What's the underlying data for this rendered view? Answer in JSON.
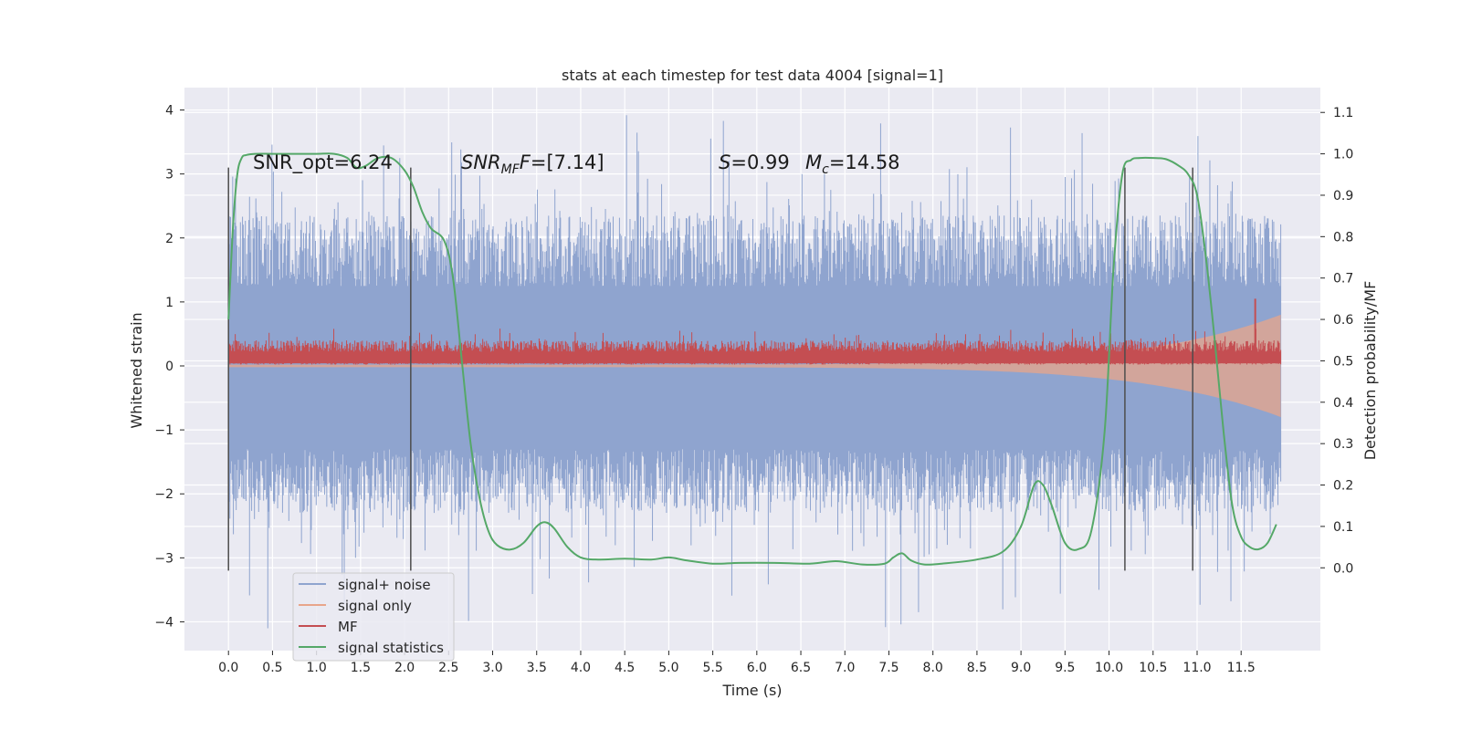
{
  "chart_data": {
    "type": "line",
    "title": "stats at each timestep for test data 4004 [signal=1]",
    "xlabel": "Time (s)",
    "ylabel": "Whitened strain",
    "y2label": "Detection probability/MF",
    "xlim": [
      -0.5,
      12.4
    ],
    "ylim": [
      -4.45,
      4.35
    ],
    "y2lim": [
      -0.2,
      1.16
    ],
    "x_ticks": [
      0.0,
      0.5,
      1.0,
      1.5,
      2.0,
      2.5,
      3.0,
      3.5,
      4.0,
      4.5,
      5.0,
      5.5,
      6.0,
      6.5,
      7.0,
      7.5,
      8.0,
      8.5,
      9.0,
      9.5,
      10.0,
      10.5,
      11.0,
      11.5
    ],
    "x_tick_labels": [
      "0.0",
      "0.5",
      "1.0",
      "1.5",
      "2.0",
      "2.5",
      "3.0",
      "3.5",
      "4.0",
      "4.5",
      "5.0",
      "5.5",
      "6.0",
      "6.5",
      "7.0",
      "7.5",
      "8.0",
      "8.5",
      "9.0",
      "9.5",
      "10.0",
      "10.5",
      "11.0",
      "11.5"
    ],
    "y_ticks": [
      -4,
      -3,
      -2,
      -1,
      0,
      1,
      2,
      3,
      4
    ],
    "y_tick_labels": [
      "−4",
      "−3",
      "−2",
      "−1",
      "0",
      "1",
      "2",
      "3",
      "4"
    ],
    "y2_ticks": [
      0.0,
      0.1,
      0.2,
      0.3,
      0.4,
      0.5,
      0.6,
      0.7,
      0.8,
      0.9,
      1.0,
      1.1
    ],
    "y2_tick_labels": [
      "0.0",
      "0.1",
      "0.2",
      "0.3",
      "0.4",
      "0.5",
      "0.6",
      "0.7",
      "0.8",
      "0.9",
      "1.0",
      "1.1"
    ],
    "grid": true,
    "legend_position": "bottom-left",
    "colors": {
      "background": "#eaeaf2",
      "grid": "#ffffff",
      "noise": "#8fa4cf",
      "signal_only": "#e8a58a",
      "mf": "#c44e52",
      "stats": "#55a868",
      "vlines": "#4d4d4d"
    },
    "series": [
      {
        "name": "signal+ noise",
        "kind": "band",
        "x_range": [
          0.0,
          11.95
        ],
        "envelope_low": -2.2,
        "envelope_high": 2.3,
        "peak_low": -4.1,
        "peak_high": 3.98
      },
      {
        "name": "signal only",
        "kind": "band",
        "x_range": [
          0.0,
          11.95
        ],
        "amplitude_start": 0.02,
        "amplitude_end": 0.8
      },
      {
        "name": "MF",
        "kind": "band",
        "x_range": [
          0.0,
          11.95
        ],
        "low": 0.02,
        "high": 0.35,
        "spike": {
          "x": 11.66,
          "value": 1.05
        }
      },
      {
        "name": "signal statistics",
        "kind": "line",
        "axis": "right",
        "x": [
          0.0,
          0.05,
          0.1,
          0.15,
          0.2,
          0.3,
          0.5,
          0.8,
          1.0,
          1.2,
          1.35,
          1.45,
          1.55,
          1.7,
          1.85,
          2.0,
          2.1,
          2.2,
          2.3,
          2.45,
          2.55,
          2.65,
          2.75,
          2.85,
          2.95,
          3.05,
          3.2,
          3.35,
          3.5,
          3.6,
          3.7,
          3.85,
          4.0,
          4.2,
          4.5,
          4.8,
          5.0,
          5.2,
          5.5,
          5.8,
          6.2,
          6.6,
          6.9,
          7.2,
          7.45,
          7.55,
          7.65,
          7.75,
          7.9,
          8.1,
          8.5,
          8.8,
          9.0,
          9.15,
          9.25,
          9.35,
          9.5,
          9.65,
          9.8,
          9.95,
          10.05,
          10.15,
          10.25,
          10.35,
          10.5,
          10.65,
          10.8,
          10.9,
          11.0,
          11.1,
          11.2,
          11.3,
          11.4,
          11.5,
          11.6,
          11.7,
          11.8,
          11.9
        ],
        "values": [
          0.6,
          0.82,
          0.95,
          0.99,
          0.997,
          1.0,
          1.0,
          1.0,
          1.0,
          1.0,
          0.99,
          0.967,
          0.97,
          0.99,
          0.99,
          0.96,
          0.92,
          0.86,
          0.82,
          0.79,
          0.7,
          0.5,
          0.3,
          0.17,
          0.09,
          0.055,
          0.044,
          0.06,
          0.1,
          0.11,
          0.095,
          0.05,
          0.025,
          0.02,
          0.022,
          0.02,
          0.025,
          0.018,
          0.01,
          0.012,
          0.012,
          0.01,
          0.016,
          0.008,
          0.01,
          0.025,
          0.035,
          0.018,
          0.008,
          0.01,
          0.02,
          0.04,
          0.1,
          0.2,
          0.2,
          0.15,
          0.06,
          0.045,
          0.09,
          0.33,
          0.72,
          0.95,
          0.985,
          0.99,
          0.99,
          0.987,
          0.97,
          0.95,
          0.9,
          0.75,
          0.55,
          0.33,
          0.15,
          0.075,
          0.05,
          0.045,
          0.06,
          0.105
        ]
      }
    ],
    "vertical_lines": [
      0.0,
      2.07,
      10.18,
      10.95
    ],
    "vertical_line_range": [
      -3.2,
      3.1
    ],
    "annotations": {
      "snr_opt": "SNR_opt=6.24",
      "snr_mf_base": "SNR",
      "snr_mf_sub": "MF",
      "snr_mf_value": "=[7.14]",
      "s_symbol": "S",
      "s_value": "=0.99",
      "mc_symbol": "M",
      "mc_sub": "c",
      "mc_value": "=14.58"
    }
  }
}
